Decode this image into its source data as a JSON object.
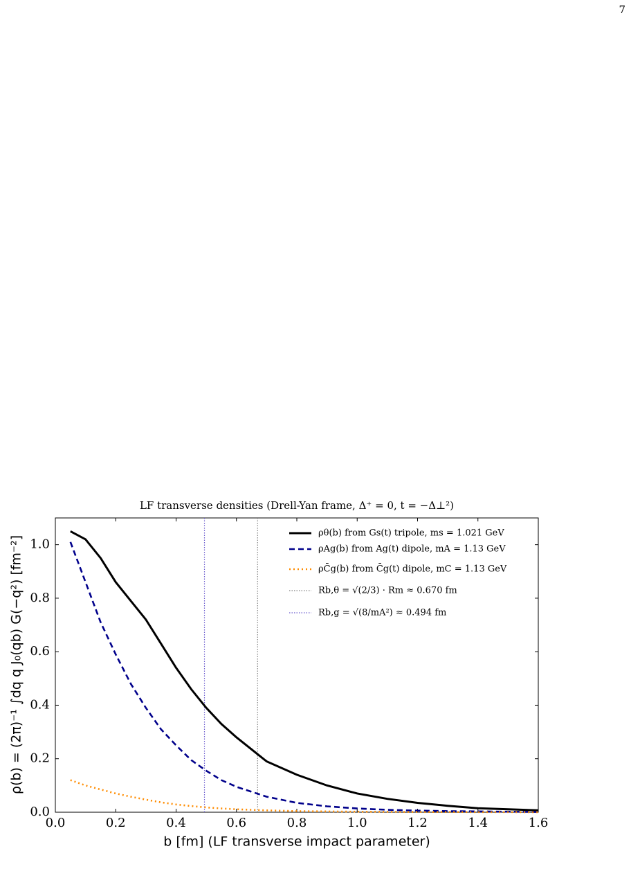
{
  "page_number": "7",
  "chart_data": {
    "type": "line",
    "title": "LF transverse densities  (Drell-Yan frame, Δ⁺ = 0, t = −Δ⊥²)",
    "x_label": "b [fm]  (LF transverse impact parameter)",
    "y_label": "ρ(b) = (2π)⁻¹ ∫dq q J₀(qb) G(−q²)   [fm⁻²]",
    "x": [
      0.05,
      0.1,
      0.15,
      0.2,
      0.25,
      0.3,
      0.35,
      0.4,
      0.45,
      0.5,
      0.55,
      0.6,
      0.7,
      0.8,
      0.9,
      1.0,
      1.1,
      1.2,
      1.3,
      1.4,
      1.5,
      1.6
    ],
    "series": [
      {
        "name": "ρθ(b)  from Gs(t) tripole, ms = 1.021 GeV",
        "color": "#000000",
        "linestyle": "solid",
        "values": [
          1.05,
          1.02,
          0.95,
          0.86,
          0.79,
          0.72,
          0.63,
          0.54,
          0.46,
          0.39,
          0.33,
          0.28,
          0.19,
          0.14,
          0.1,
          0.07,
          0.05,
          0.035,
          0.024,
          0.015,
          0.011,
          0.007
        ]
      },
      {
        "name": "ρAg(b)  from Ag(t) dipole, mA = 1.13 GeV",
        "color": "#00008b",
        "linestyle": "dashed",
        "values": [
          1.01,
          0.86,
          0.71,
          0.59,
          0.48,
          0.39,
          0.31,
          0.25,
          0.195,
          0.155,
          0.12,
          0.095,
          0.058,
          0.035,
          0.022,
          0.014,
          0.009,
          0.006,
          0.004,
          0.003,
          0.002,
          0.001
        ]
      },
      {
        "name": "ρC̄g(b)  from C̄g(t) dipole, mC = 1.13 GeV",
        "color": "#ff8c00",
        "linestyle": "dotted",
        "values": [
          0.12,
          0.1,
          0.085,
          0.07,
          0.058,
          0.047,
          0.037,
          0.029,
          0.023,
          0.018,
          0.014,
          0.011,
          0.007,
          0.004,
          0.003,
          0.002,
          0.0015,
          0.001,
          0.0008,
          0.0005,
          0.0003,
          0.0002
        ]
      }
    ],
    "vlines": [
      {
        "name": "Rb,θ = √(2/3) · Rm ≈ 0.670 fm",
        "color": "#808080",
        "x": 0.67
      },
      {
        "name": "Rb,g = √(8/mA²) ≈ 0.494 fm",
        "color": "#6a5acd",
        "x": 0.494
      }
    ],
    "xlim": [
      0,
      1.6
    ],
    "ylim": [
      0,
      1.1
    ],
    "xticks": [
      {
        "value": 0,
        "label": "0.0"
      },
      0.2,
      0.4,
      0.6,
      0.8,
      {
        "value": 1,
        "label": "1.0"
      },
      1.2,
      1.4,
      1.6
    ],
    "yticks": [
      {
        "value": 0,
        "label": "0.0"
      },
      0.2,
      0.4,
      0.6,
      0.8,
      {
        "value": 1,
        "label": "1.0"
      }
    ],
    "legend": "upper right",
    "grid": false
  }
}
